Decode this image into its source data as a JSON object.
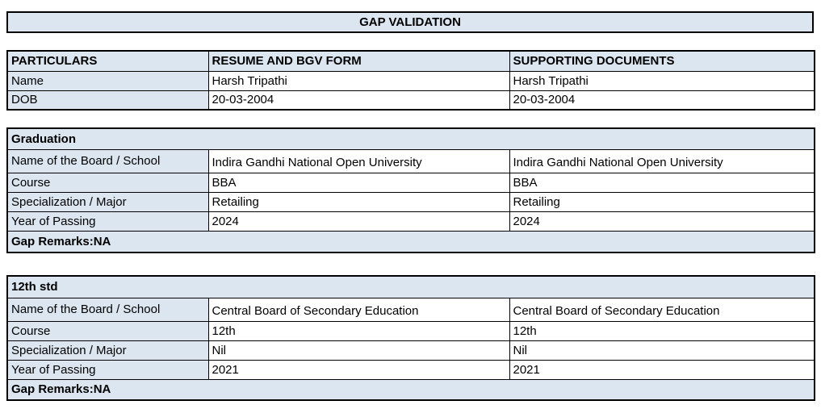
{
  "title": "GAP VALIDATION",
  "colors": {
    "header_fill": "#dce6f1",
    "border": "#000000",
    "page_background": "#ffffff",
    "text": "#000000"
  },
  "particulars_table": {
    "headers": [
      "PARTICULARS",
      "RESUME AND BGV FORM",
      "SUPPORTING DOCUMENTS"
    ],
    "rows": [
      {
        "label": "Name",
        "resume": "Harsh Tripathi",
        "supporting": "Harsh Tripathi"
      },
      {
        "label": "DOB",
        "resume": "20-03-2004",
        "supporting": "20-03-2004"
      }
    ]
  },
  "sections": [
    {
      "title": "Graduation",
      "rows": [
        {
          "label": "Name of the Board / School",
          "resume": "Indira Gandhi National Open University",
          "supporting": "Indira Gandhi National Open University"
        },
        {
          "label": "Course",
          "resume": "BBA",
          "supporting": "BBA"
        },
        {
          "label": "Specialization / Major",
          "resume": "Retailing",
          "supporting": "Retailing"
        },
        {
          "label": "Year of Passing",
          "resume": "2024",
          "supporting": "2024"
        }
      ],
      "remarks": "Gap Remarks:NA"
    },
    {
      "title": "12th std",
      "rows": [
        {
          "label": "Name of the Board / School",
          "resume": "Central Board of Secondary Education",
          "supporting": "Central Board of Secondary Education"
        },
        {
          "label": "Course",
          "resume": "12th",
          "supporting": "12th"
        },
        {
          "label": "Specialization / Major",
          "resume": "Nil",
          "supporting": "Nil"
        },
        {
          "label": "Year of Passing",
          "resume": "2021",
          "supporting": "2021"
        }
      ],
      "remarks": "Gap Remarks:NA"
    }
  ]
}
